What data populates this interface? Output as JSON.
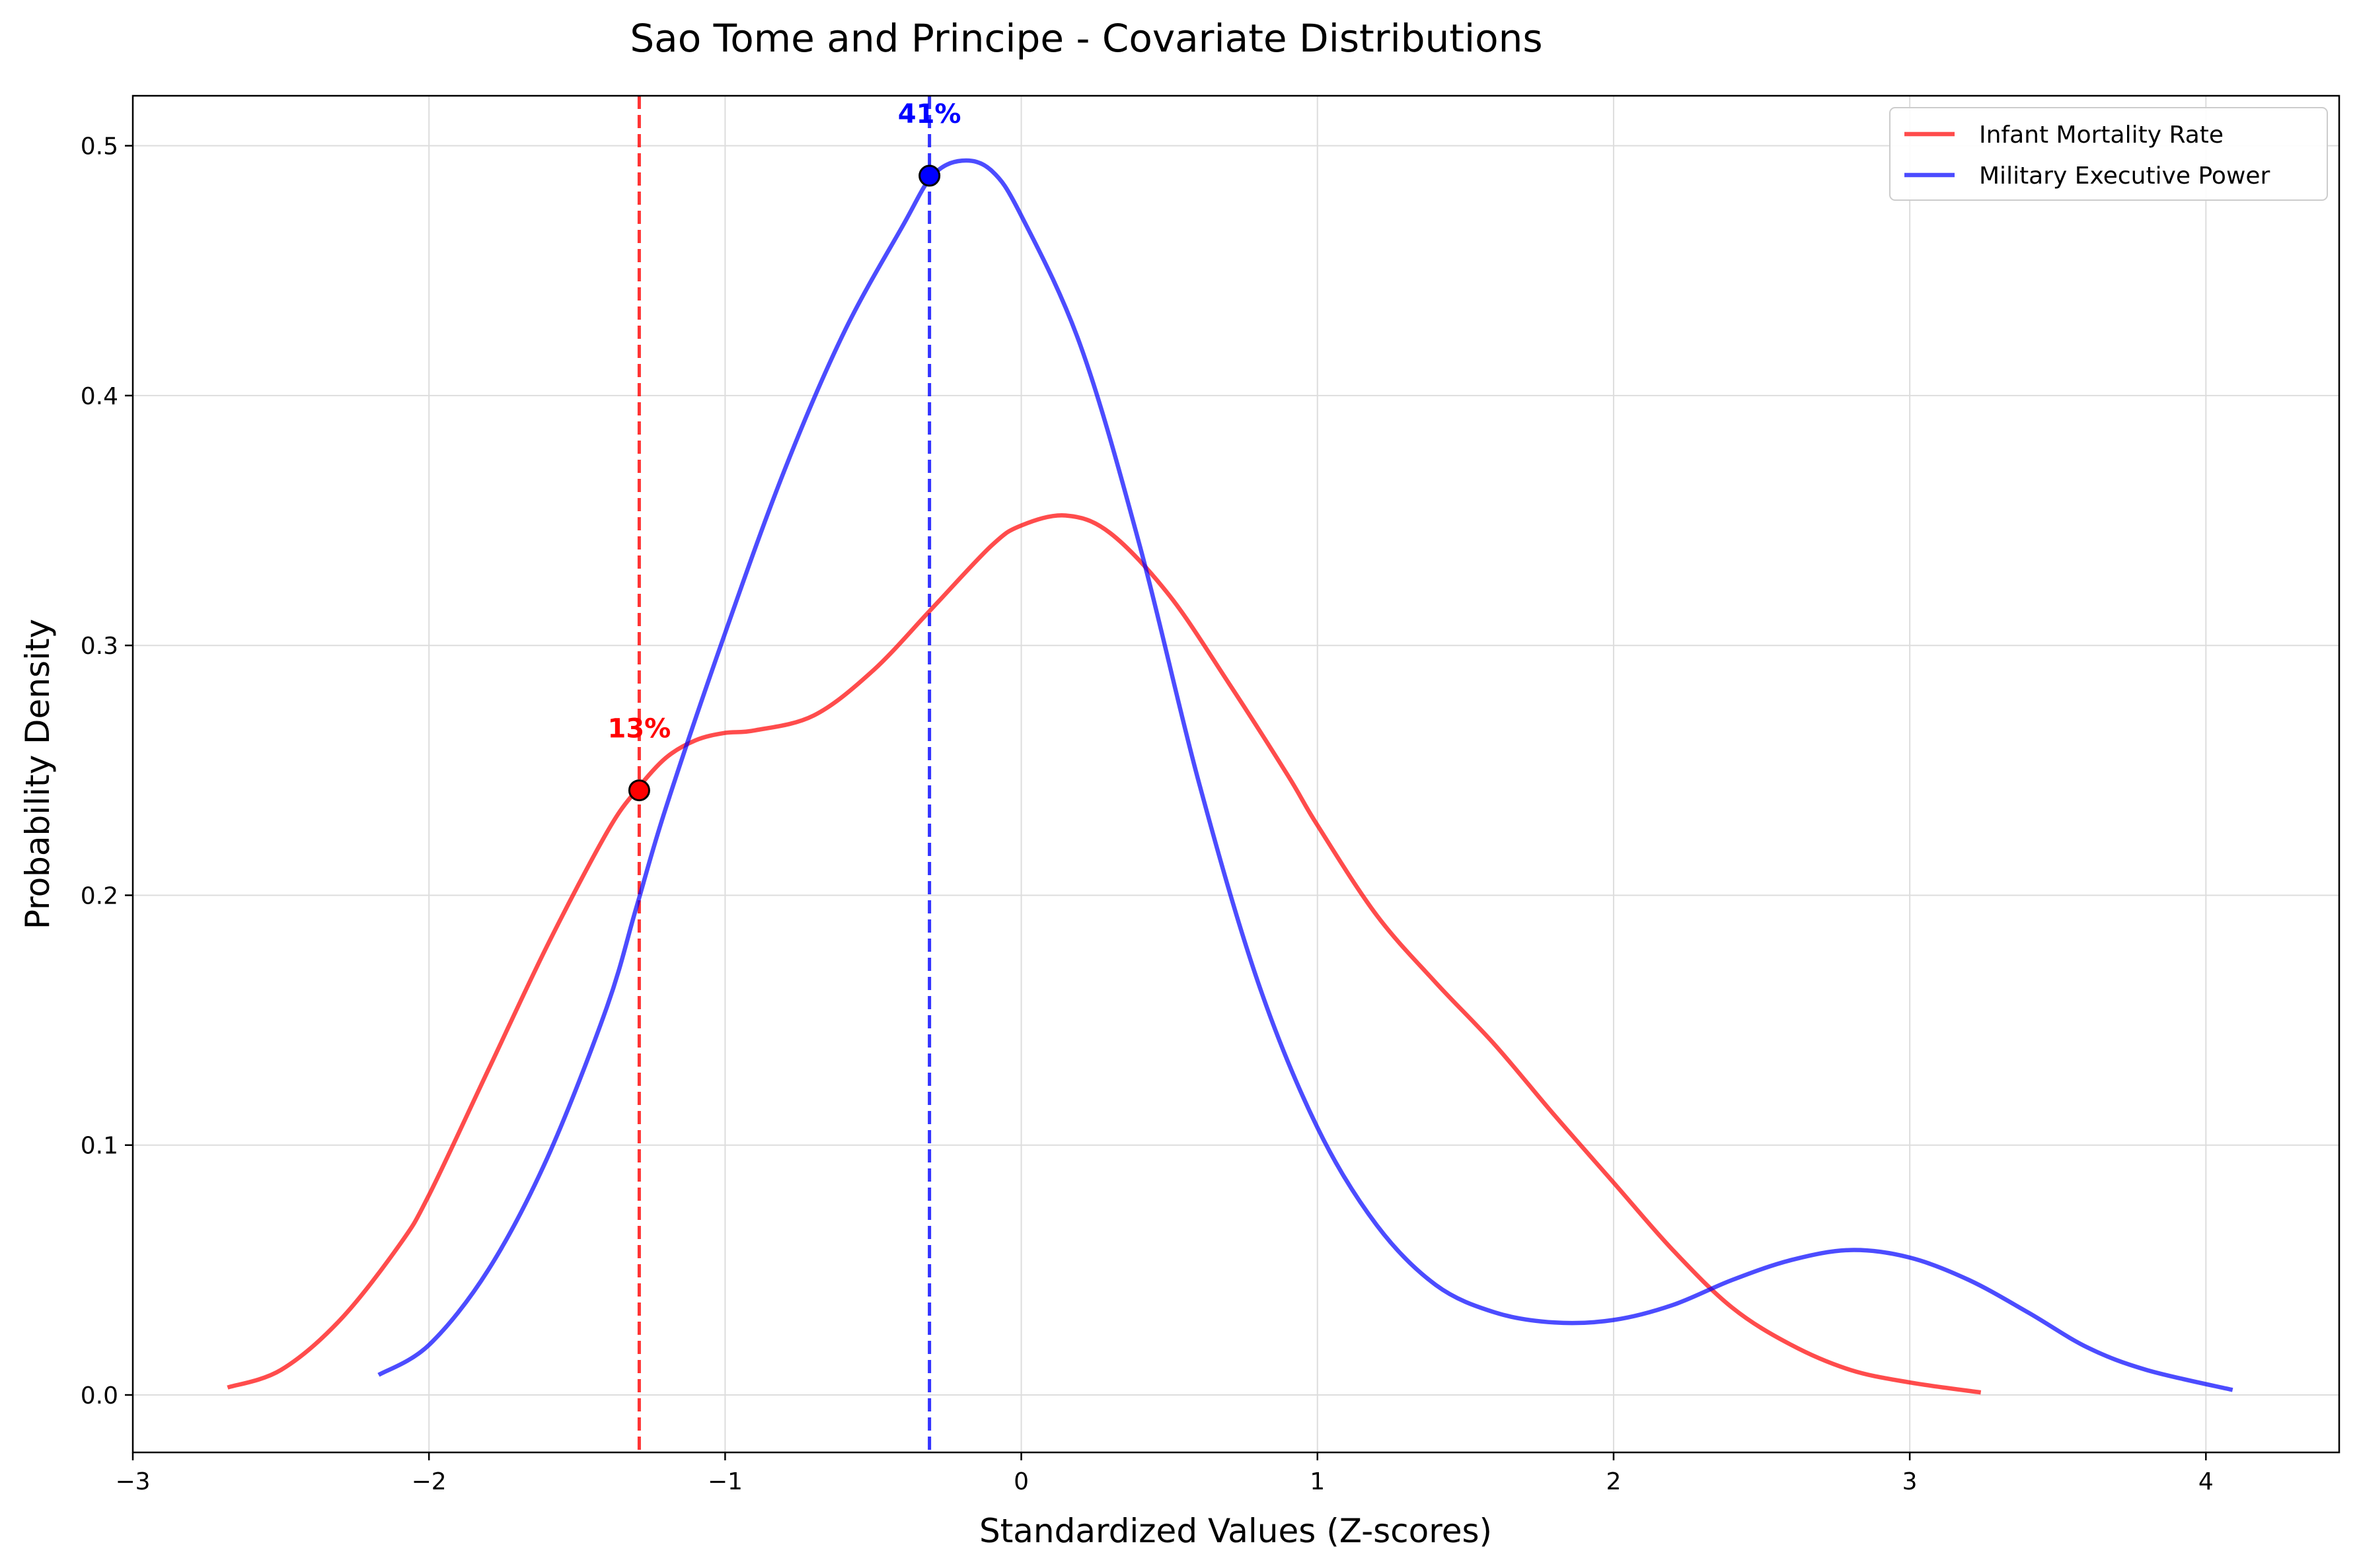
{
  "chart_data": {
    "type": "line",
    "title": "Sao Tome and Principe - Covariate Distributions",
    "xlabel": "Standardized Values (Z-scores)",
    "ylabel": "Probability Density",
    "xlim": [
      -3,
      4.45
    ],
    "ylim": [
      -0.023,
      0.52
    ],
    "xticks": [
      -3,
      -2,
      -1,
      0,
      1,
      2,
      3,
      4
    ],
    "xtick_labels": [
      "−3",
      "−2",
      "−1",
      "0",
      "1",
      "2",
      "3",
      "4"
    ],
    "yticks": [
      0.0,
      0.1,
      0.2,
      0.3,
      0.4,
      0.5
    ],
    "ytick_labels": [
      "0.0",
      "0.1",
      "0.2",
      "0.3",
      "0.4",
      "0.5"
    ],
    "grid": true,
    "legend_position": "upper right",
    "series": [
      {
        "name": "Infant Mortality Rate",
        "color": "#ff0000",
        "x": [
          -2.68,
          -2.5,
          -2.3,
          -2.1,
          -2.0,
          -1.8,
          -1.6,
          -1.4,
          -1.3,
          -1.2,
          -1.1,
          -1.0,
          -0.9,
          -0.7,
          -0.5,
          -0.3,
          -0.1,
          0.0,
          0.15,
          0.3,
          0.5,
          0.7,
          0.9,
          1.0,
          1.2,
          1.4,
          1.6,
          1.8,
          2.0,
          2.2,
          2.4,
          2.6,
          2.8,
          3.0,
          3.24
        ],
        "y": [
          0.003,
          0.01,
          0.03,
          0.06,
          0.08,
          0.13,
          0.18,
          0.225,
          0.242,
          0.255,
          0.262,
          0.265,
          0.266,
          0.272,
          0.29,
          0.315,
          0.34,
          0.348,
          0.352,
          0.345,
          0.32,
          0.285,
          0.248,
          0.228,
          0.192,
          0.165,
          0.14,
          0.112,
          0.085,
          0.058,
          0.035,
          0.02,
          0.01,
          0.005,
          0.001
        ]
      },
      {
        "name": "Military Executive Power",
        "color": "#0000ff",
        "x": [
          -2.17,
          -2.0,
          -1.8,
          -1.6,
          -1.4,
          -1.3,
          -1.2,
          -1.0,
          -0.8,
          -0.6,
          -0.4,
          -0.3,
          -0.2,
          -0.1,
          0.0,
          0.2,
          0.4,
          0.6,
          0.8,
          1.0,
          1.2,
          1.4,
          1.6,
          1.8,
          2.0,
          2.2,
          2.4,
          2.6,
          2.8,
          3.0,
          3.2,
          3.4,
          3.6,
          3.8,
          4.09
        ],
        "y": [
          0.008,
          0.02,
          0.05,
          0.095,
          0.155,
          0.195,
          0.235,
          0.305,
          0.37,
          0.425,
          0.468,
          0.488,
          0.494,
          0.49,
          0.472,
          0.42,
          0.34,
          0.245,
          0.165,
          0.107,
          0.068,
          0.044,
          0.033,
          0.029,
          0.03,
          0.036,
          0.046,
          0.054,
          0.058,
          0.055,
          0.046,
          0.033,
          0.019,
          0.01,
          0.002
        ]
      }
    ],
    "reference_lines": [
      {
        "series": "Infant Mortality Rate",
        "x": -1.29,
        "color": "#ff0000",
        "style": "dashed"
      },
      {
        "series": "Military Executive Power",
        "x": -0.31,
        "color": "#0000ff",
        "style": "dashed"
      }
    ],
    "markers": [
      {
        "series": "Infant Mortality Rate",
        "x": -1.29,
        "y": 0.242,
        "color": "#ff0000",
        "label": "13%"
      },
      {
        "series": "Military Executive Power",
        "x": -0.31,
        "y": 0.488,
        "color": "#0000ff",
        "label": "41%"
      }
    ]
  }
}
